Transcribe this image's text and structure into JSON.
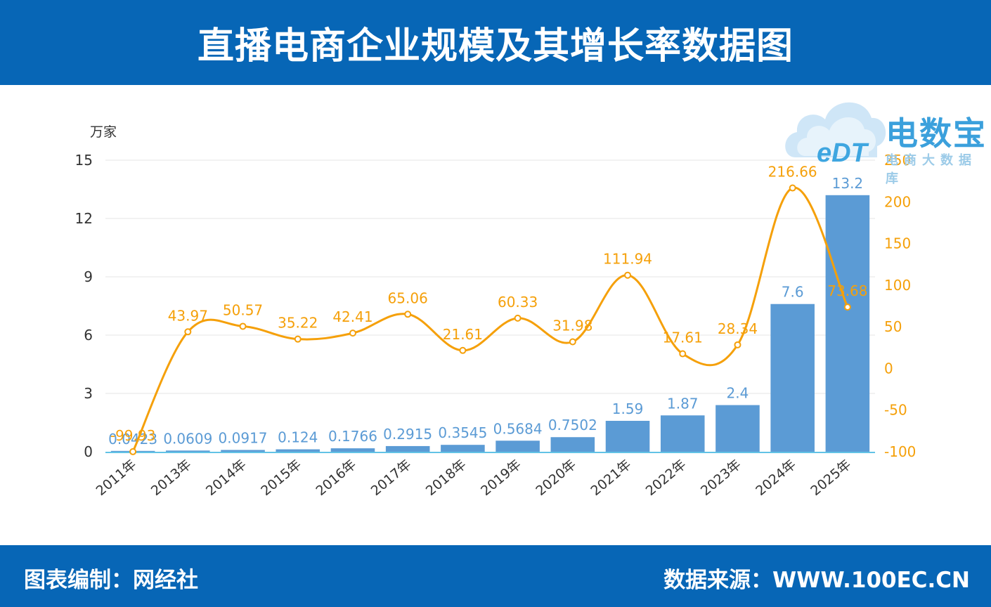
{
  "header": {
    "title": "直播电商企业规模及其增长率数据图"
  },
  "footer": {
    "left": "图表编制：网经社",
    "right": "数据来源：WWW.100EC.CN"
  },
  "logo": {
    "name": "电数宝",
    "subtitle": "电商大数据库",
    "mark": "eDT"
  },
  "colors": {
    "header_bg": "#0766b6",
    "bar": "#5b9bd5",
    "line": "#f5a00a",
    "axis": "#62c3e6"
  },
  "chart_data": {
    "type": "bar",
    "categories": [
      "2011年",
      "2013年",
      "2014年",
      "2015年",
      "2016年",
      "2017年",
      "2018年",
      "2019年",
      "2020年",
      "2021年",
      "2022年",
      "2023年",
      "2024年",
      "2025年"
    ],
    "series": [
      {
        "type": "bar",
        "axis": "left",
        "values": [
          0.0423,
          0.0609,
          0.0917,
          0.124,
          0.1766,
          0.2915,
          0.3545,
          0.5684,
          0.7502,
          1.59,
          1.87,
          2.4,
          7.6,
          13.2
        ],
        "labels": [
          "0.0423",
          "0.0609",
          "0.0917",
          "0.124",
          "0.1766",
          "0.2915",
          "0.3545",
          "0.5684",
          "0.7502",
          "1.59",
          "1.87",
          "2.4",
          "7.6",
          "13.2"
        ]
      },
      {
        "type": "line",
        "axis": "right",
        "values": [
          -99.93,
          43.97,
          50.57,
          35.22,
          42.41,
          65.06,
          21.61,
          60.33,
          31.98,
          111.94,
          17.61,
          28.34,
          216.66,
          73.68
        ],
        "labels": [
          "-99.93",
          "43.97",
          "50.57",
          "35.22",
          "42.41",
          "65.06",
          "21.61",
          "60.33",
          "31.98",
          "111.94",
          "17.61",
          "28.34",
          "216.66",
          "73.68"
        ]
      }
    ],
    "y_left": {
      "label": "万家",
      "ticks": [
        0,
        3,
        6,
        9,
        12,
        15
      ],
      "range": [
        0,
        15
      ]
    },
    "y_right": {
      "label": "%",
      "ticks": [
        -100,
        -50,
        0,
        50,
        100,
        150,
        200,
        250
      ],
      "range": [
        -100,
        250
      ]
    },
    "grid": true,
    "legend": "none"
  }
}
